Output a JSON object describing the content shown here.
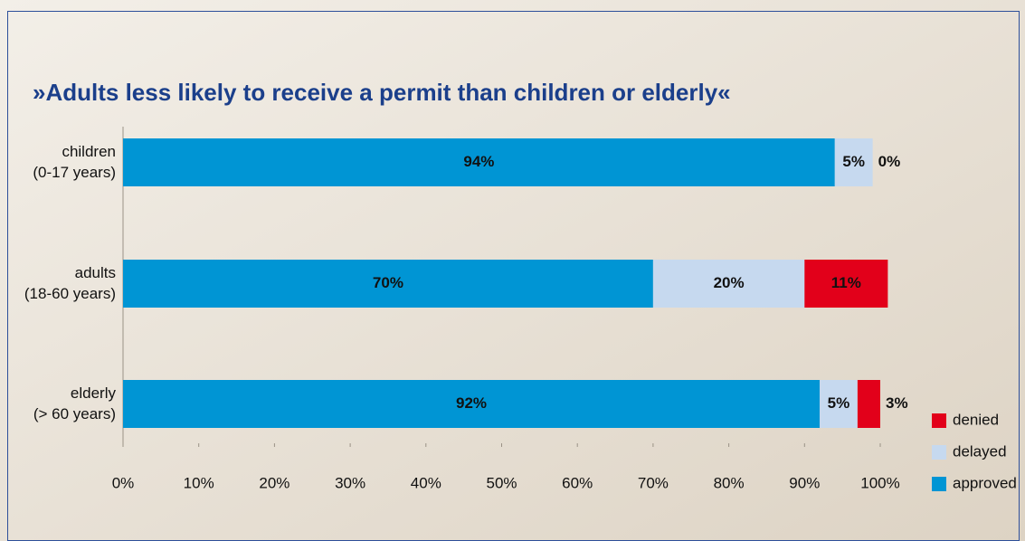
{
  "chart_data": {
    "type": "stacked-bar-horizontal",
    "title": "»Adults less likely to receive a permit than children or elderly«",
    "categories": [
      [
        "children",
        "(0-17 years)"
      ],
      [
        "adults",
        "(18-60 years)"
      ],
      [
        "elderly",
        "(> 60 years)"
      ]
    ],
    "series": [
      {
        "name": "approved",
        "color": "#0095d4",
        "values": [
          94,
          70,
          92
        ],
        "value_labels": [
          "94%",
          "70%",
          "92%"
        ]
      },
      {
        "name": "delayed",
        "color": "#c6d9ef",
        "values": [
          5,
          20,
          5
        ],
        "value_labels": [
          "5%",
          "20%",
          "5%"
        ]
      },
      {
        "name": "denied",
        "color": "#e2001a",
        "values": [
          0,
          11,
          3
        ],
        "value_labels": [
          "0%",
          "11%",
          "3%"
        ]
      }
    ],
    "xlim": [
      0,
      100
    ],
    "xticks": [
      {
        "value": 0,
        "label": "0%"
      },
      {
        "value": 10,
        "label": "10%"
      },
      {
        "value": 20,
        "label": "20%"
      },
      {
        "value": 30,
        "label": "30%"
      },
      {
        "value": 40,
        "label": "40%"
      },
      {
        "value": 50,
        "label": "50%"
      },
      {
        "value": 60,
        "label": "60%"
      },
      {
        "value": 70,
        "label": "70%"
      },
      {
        "value": 80,
        "label": "80%"
      },
      {
        "value": 90,
        "label": "90%"
      },
      {
        "value": 100,
        "label": "100%"
      }
    ],
    "legend": "bottom-right",
    "grid": false
  }
}
